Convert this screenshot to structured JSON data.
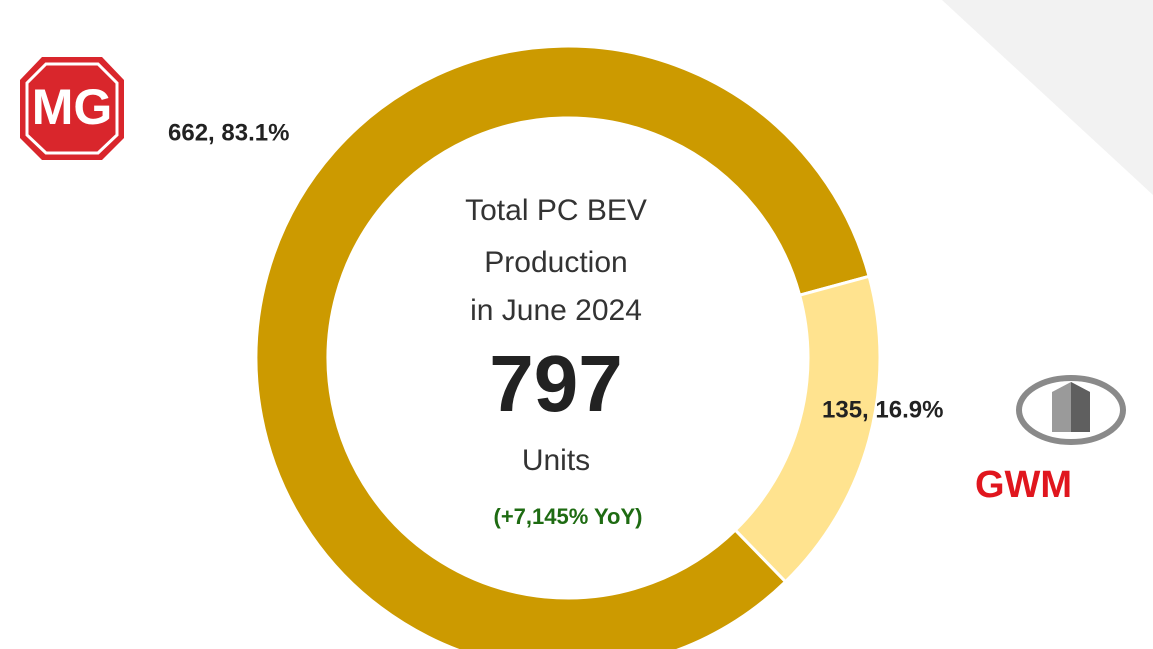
{
  "chart_data": {
    "type": "donut",
    "center_text": [
      "Total PC BEV",
      "Production",
      "in June 2024"
    ],
    "total": 797,
    "unit": "Units",
    "change": "(+7,145% YoY)",
    "categories": [
      "MG",
      "GWM"
    ],
    "values": [
      662,
      135
    ],
    "value_labels": [
      "662, 83.1%",
      "135, 16.9%"
    ],
    "colors": [
      "#CC9A00",
      "#FFE38F"
    ]
  }
}
